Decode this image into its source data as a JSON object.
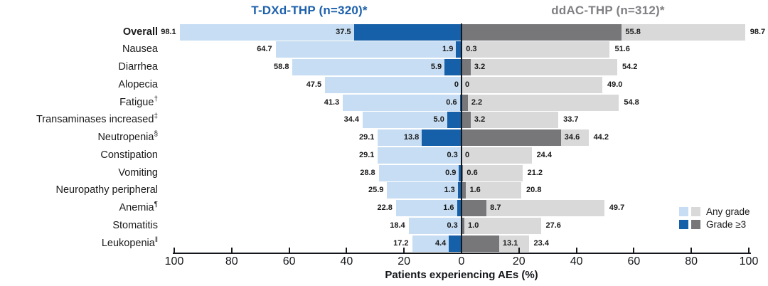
{
  "chart_data": {
    "type": "bar",
    "variant": "diverging-tornado-grouped",
    "title_left": "T-DXd-THP (n=320)*",
    "title_right": "ddAC-THP (n=312)*",
    "xlabel": "Patients experiencing AEs (%)",
    "x_tick_labels": [
      "100",
      "80",
      "60",
      "40",
      "20",
      "0",
      "20",
      "40",
      "60",
      "80",
      "100"
    ],
    "axis_range_each_side": [
      0,
      100
    ],
    "legend": [
      {
        "label": "Any grade",
        "swatches": [
          "#c6ddf3",
          "#d9d9d9"
        ]
      },
      {
        "label": "Grade ≥3",
        "swatches": [
          "#1560a8",
          "#77777a"
        ]
      }
    ],
    "colors": {
      "tdxd_any": "#c6ddf3",
      "tdxd_grade3": "#1560a8",
      "ddac_any": "#d9d9d9",
      "ddac_grade3": "#77777a",
      "left_title": "#1d60ab",
      "right_title": "#808084",
      "axis": "#15171a"
    },
    "arms": {
      "left": "T-DXd-THP",
      "right": "ddAC-THP"
    },
    "rows": [
      {
        "label": "Overall",
        "sup": "",
        "bold": true,
        "left_any": "98.1",
        "left_g3": "37.5",
        "right_g3": "55.8",
        "right_any": "98.7"
      },
      {
        "label": "Nausea",
        "sup": "",
        "bold": false,
        "left_any": "64.7",
        "left_g3": "1.9",
        "right_g3": "0.3",
        "right_any": "51.6"
      },
      {
        "label": "Diarrhea",
        "sup": "",
        "bold": false,
        "left_any": "58.8",
        "left_g3": "5.9",
        "right_g3": "3.2",
        "right_any": "54.2"
      },
      {
        "label": "Alopecia",
        "sup": "",
        "bold": false,
        "left_any": "47.5",
        "left_g3": "0",
        "right_g3": "0",
        "right_any": "49.0"
      },
      {
        "label": "Fatigue",
        "sup": "†",
        "bold": false,
        "left_any": "41.3",
        "left_g3": "0.6",
        "right_g3": "2.2",
        "right_any": "54.8"
      },
      {
        "label": "Transaminases increased",
        "sup": "‡",
        "bold": false,
        "left_any": "34.4",
        "left_g3": "5.0",
        "right_g3": "3.2",
        "right_any": "33.7"
      },
      {
        "label": "Neutropenia",
        "sup": "§",
        "bold": false,
        "left_any": "29.1",
        "left_g3": "13.8",
        "right_g3": "34.6",
        "right_any": "44.2"
      },
      {
        "label": "Constipation",
        "sup": "",
        "bold": false,
        "left_any": "29.1",
        "left_g3": "0.3",
        "right_g3": "0",
        "right_any": "24.4"
      },
      {
        "label": "Vomiting",
        "sup": "",
        "bold": false,
        "left_any": "28.8",
        "left_g3": "0.9",
        "right_g3": "0.6",
        "right_any": "21.2"
      },
      {
        "label": "Neuropathy peripheral",
        "sup": "",
        "bold": false,
        "left_any": "25.9",
        "left_g3": "1.3",
        "right_g3": "1.6",
        "right_any": "20.8"
      },
      {
        "label": "Anemia",
        "sup": "¶",
        "bold": false,
        "left_any": "22.8",
        "left_g3": "1.6",
        "right_g3": "8.7",
        "right_any": "49.7"
      },
      {
        "label": "Stomatitis",
        "sup": "",
        "bold": false,
        "left_any": "18.4",
        "left_g3": "0.3",
        "right_g3": "1.0",
        "right_any": "27.6"
      },
      {
        "label": "Leukopenia",
        "sup": "‖",
        "bold": false,
        "left_any": "17.2",
        "left_g3": "4.4",
        "right_g3": "13.1",
        "right_any": "23.4"
      }
    ]
  }
}
